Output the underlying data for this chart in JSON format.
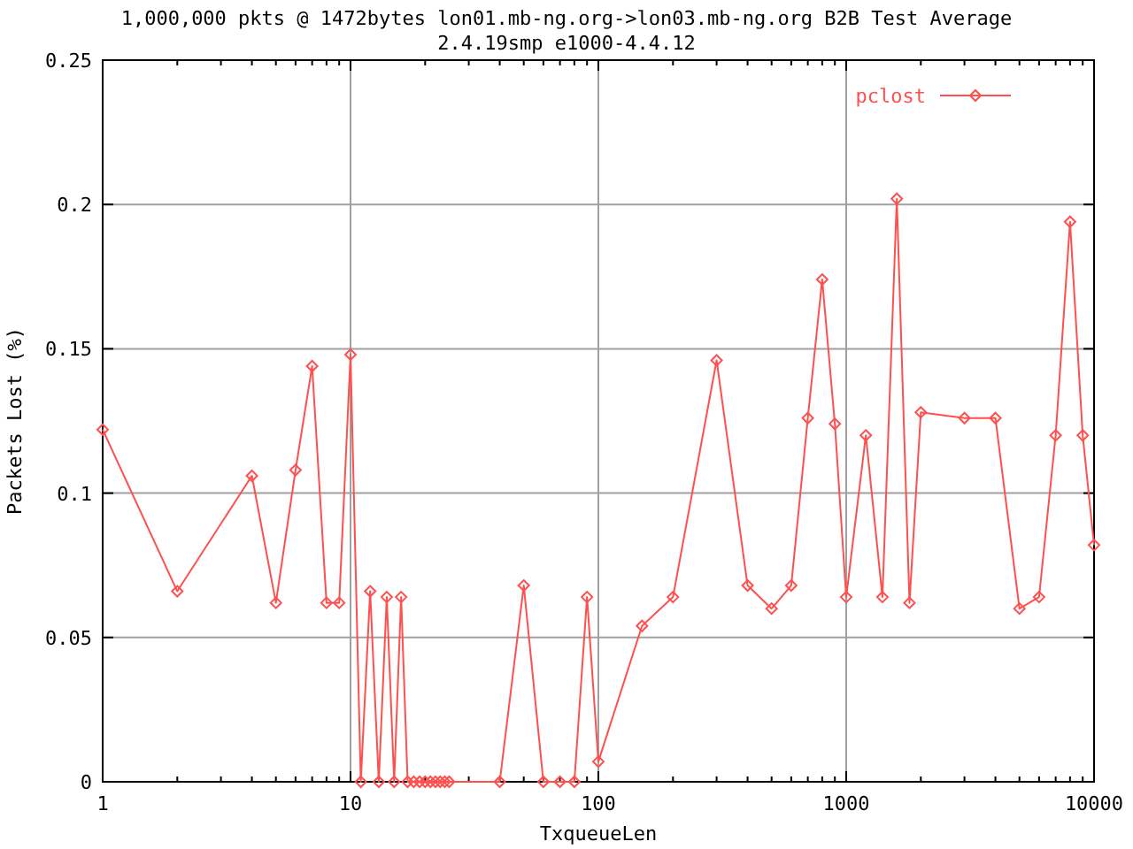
{
  "chart_data": {
    "type": "line",
    "title": "1,000,000 pkts @ 1472bytes lon01.mb-ng.org->lon03.mb-ng.org B2B Test Average",
    "subtitle": "2.4.19smp e1000-4.4.12",
    "xlabel": "TxqueueLen",
    "ylabel": "Packets Lost (%)",
    "x": [
      1,
      2,
      4,
      5,
      6,
      7,
      8,
      9,
      10,
      11,
      12,
      13,
      14,
      15,
      16,
      17,
      18,
      19,
      20,
      21,
      22,
      23,
      24,
      25,
      40,
      50,
      60,
      70,
      80,
      90,
      100,
      150,
      200,
      300,
      400,
      500,
      600,
      700,
      800,
      900,
      1000,
      1200,
      1400,
      1600,
      1800,
      2000,
      3000,
      4000,
      5000,
      6000,
      7000,
      8000,
      9000,
      10000
    ],
    "series": [
      {
        "name": "pclost",
        "color": "#ff4f4f",
        "values": [
          0.122,
          0.066,
          0.106,
          0.062,
          0.108,
          0.144,
          0.062,
          0.062,
          0.148,
          0,
          0.066,
          0,
          0.064,
          0,
          0.064,
          0,
          0,
          0,
          0,
          0,
          0,
          0,
          0,
          0,
          0,
          0.068,
          0,
          0,
          0,
          0.064,
          0.007,
          0.054,
          0.064,
          0.146,
          0.068,
          0.06,
          0.068,
          0.126,
          0.174,
          0.124,
          0.064,
          0.12,
          0.064,
          0.202,
          0.062,
          0.128,
          0.126,
          0.126,
          0.06,
          0.064,
          0.12,
          0.194,
          0.12,
          0.082
        ]
      }
    ],
    "log": "x",
    "xlim": [
      1,
      10000
    ],
    "xticks": [
      1,
      10,
      100,
      1000,
      10000
    ],
    "ylim": [
      0,
      0.25
    ],
    "yticks": [
      0,
      0.05,
      0.1,
      0.15,
      0.2,
      0.25
    ],
    "grid": true,
    "legend": "top right",
    "marker": "diamond",
    "line_style": "solid"
  }
}
